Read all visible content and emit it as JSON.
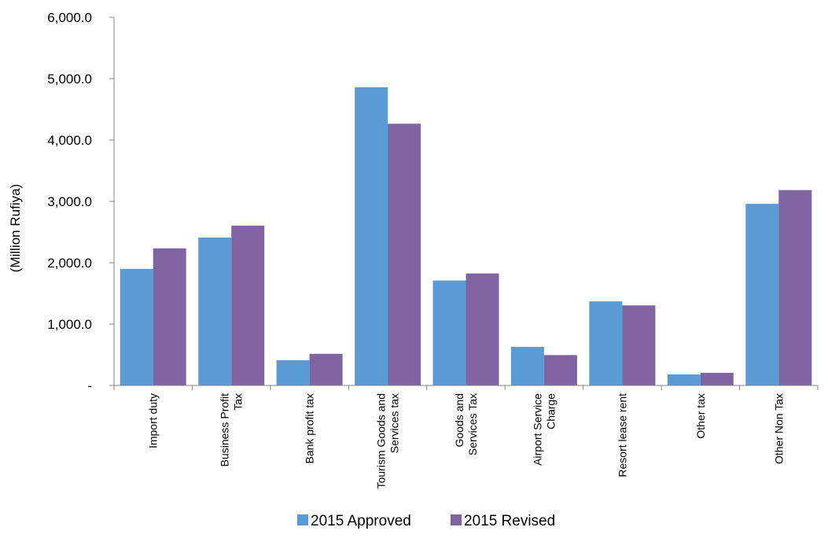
{
  "chart_data": {
    "type": "bar",
    "title": "",
    "xlabel": "",
    "ylabel": "(Million  Rufiya)",
    "ylim": [
      0,
      6000
    ],
    "y_ticks": [
      {
        "value": 0,
        "label": "-"
      },
      {
        "value": 1000,
        "label": "1,000.0"
      },
      {
        "value": 2000,
        "label": "2,000.0"
      },
      {
        "value": 3000,
        "label": "3,000.0"
      },
      {
        "value": 4000,
        "label": "4,000.0"
      },
      {
        "value": 5000,
        "label": "5,000.0"
      },
      {
        "value": 6000,
        "label": "6,000.0"
      }
    ],
    "grid": false,
    "legend_position": "bottom",
    "categories": [
      [
        "Import duty"
      ],
      [
        "Business Profit",
        "Tax"
      ],
      [
        "Bank profit tax"
      ],
      [
        "Tourism Goods and",
        "Services tax"
      ],
      [
        "Goods and",
        "Services Tax"
      ],
      [
        "Airport Service",
        "Charge"
      ],
      [
        "Resort lease rent"
      ],
      [
        "Other tax"
      ],
      [
        "Other Non Tax"
      ]
    ],
    "series": [
      {
        "name": "2015 Approved",
        "color": "#5B9BD5",
        "values": [
          1900,
          2410,
          410,
          4860,
          1710,
          630,
          1370,
          180,
          2960
        ]
      },
      {
        "name": "2015 Revised",
        "color": "#8064A2",
        "values": [
          2235,
          2605,
          515,
          4265,
          1825,
          495,
          1305,
          205,
          3185
        ]
      }
    ]
  }
}
